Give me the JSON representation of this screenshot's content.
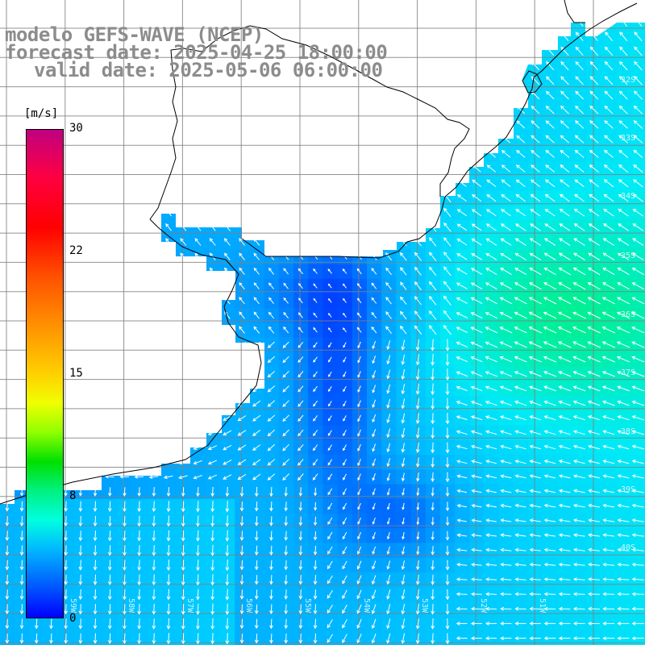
{
  "header": {
    "line1": "modelo GEFS-WAVE (NCEP)",
    "line2": "forecast date: 2025-04-25 18:00:00",
    "line3": "valid date: 2025-05-06 06:00:00"
  },
  "colorbar": {
    "unit": "[m/s]",
    "ticks": [
      "30",
      "22",
      "15",
      "8",
      "0"
    ],
    "tick_values": [
      30,
      22,
      15,
      8,
      0
    ],
    "colors": [
      "#c00080",
      "#ff0000",
      "#ff9000",
      "#f0ff00",
      "#00e000",
      "#00ffe0",
      "#0060ff",
      "#0000ff"
    ]
  },
  "axes": {
    "lat_labels": [
      "32S",
      "33S",
      "34S",
      "35S",
      "36S",
      "37S",
      "38S",
      "39S",
      "40S"
    ],
    "lon_labels": [
      "59W",
      "58W",
      "57W",
      "56W",
      "55W",
      "54W",
      "53W",
      "52W",
      "51W"
    ]
  },
  "colors": {
    "land": "#ffffff",
    "coast": "#000000",
    "grid": "#808080",
    "arrow": "#ffffff"
  }
}
